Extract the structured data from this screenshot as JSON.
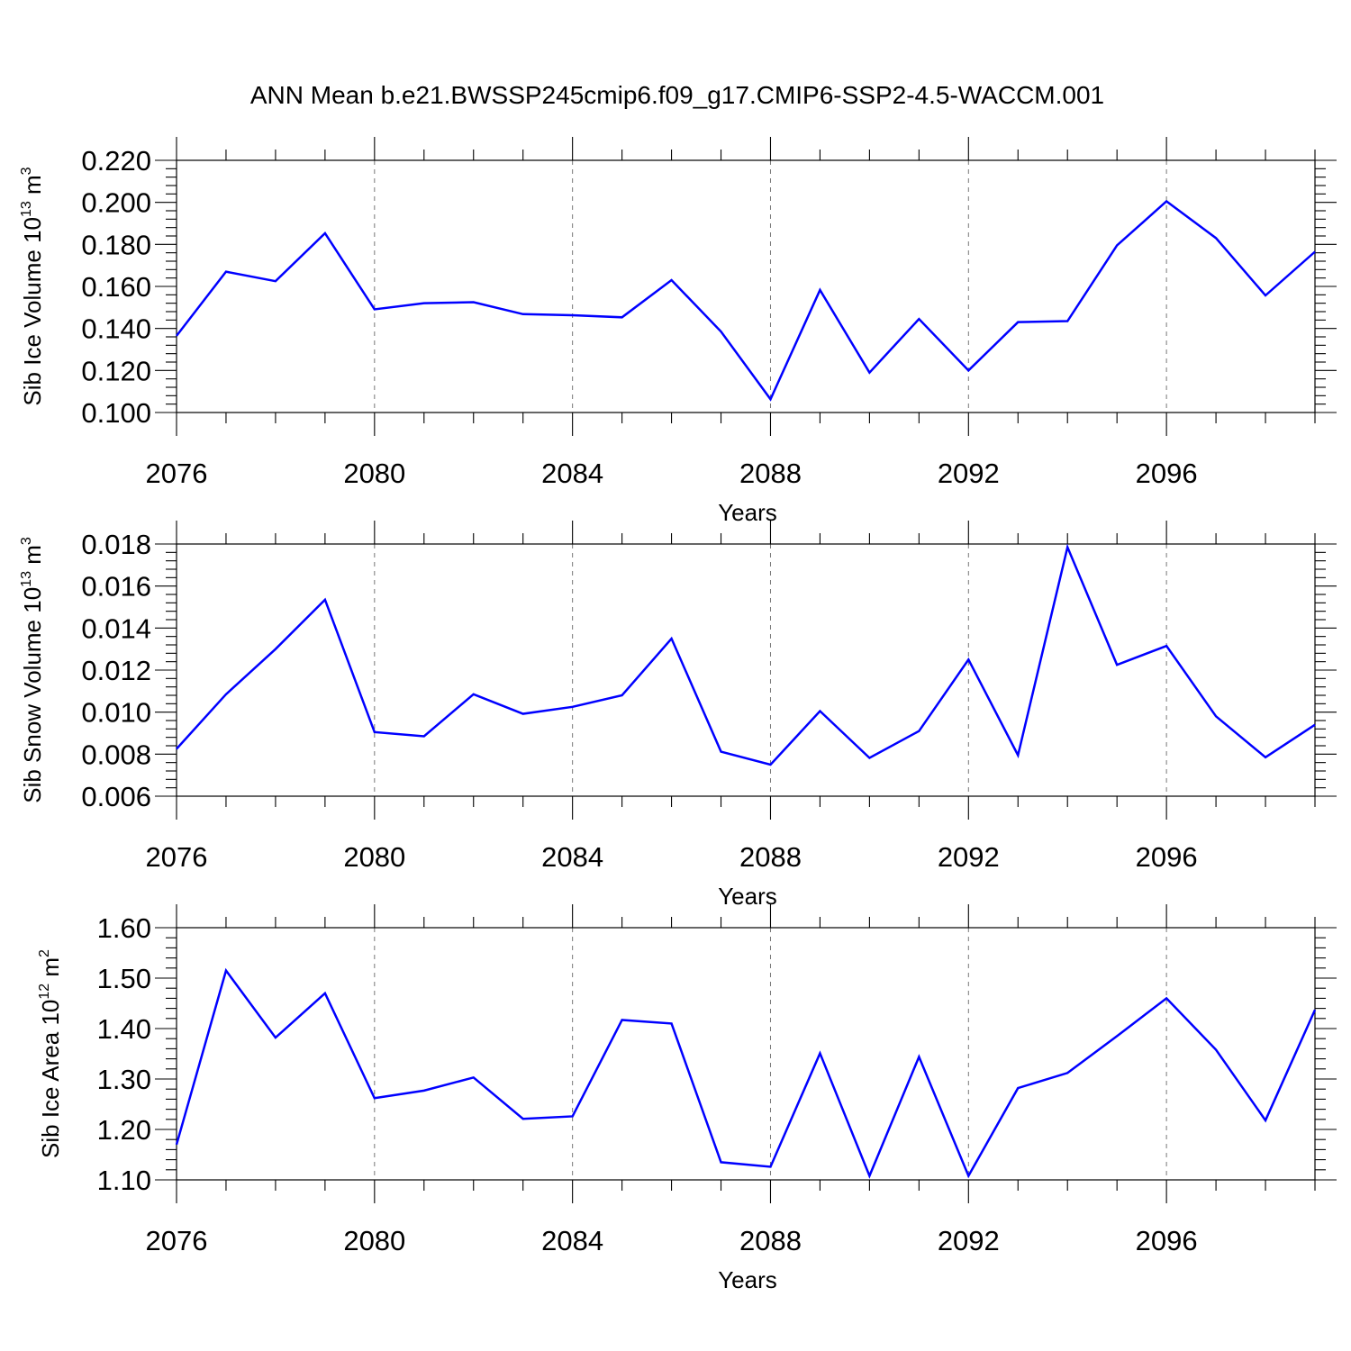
{
  "title": "ANN Mean b.e21.BWSSP245cmip6.f09_g17.CMIP6-SSP2-4.5-WACCM.001",
  "colors": {
    "series": "#0000ff",
    "frame": "#000000",
    "grid": "#777777"
  },
  "chart_data": [
    {
      "type": "line",
      "ylabel": {
        "main": "Sib Ice Volume 10",
        "exp1": "13",
        "mid": " m",
        "exp2": "3"
      },
      "xlabel": "Years",
      "xlim": [
        2076,
        2099
      ],
      "ylim": [
        0.1,
        0.22
      ],
      "x_ticks": [
        2076,
        2080,
        2084,
        2088,
        2092,
        2096
      ],
      "y_ticks": [
        0.1,
        0.12,
        0.14,
        0.16,
        0.18,
        0.2,
        0.22
      ],
      "y_tick_labels": [
        "0.100",
        "0.120",
        "0.140",
        "0.160",
        "0.180",
        "0.200",
        "0.220"
      ],
      "grid": "vertical dashed at major x ticks",
      "x": [
        2076,
        2077,
        2078,
        2079,
        2080,
        2081,
        2082,
        2083,
        2084,
        2085,
        2086,
        2087,
        2088,
        2089,
        2090,
        2091,
        2092,
        2093,
        2094,
        2095,
        2096,
        2097,
        2098,
        2099
      ],
      "values": [
        0.1365,
        0.167,
        0.1625,
        0.1853,
        0.1491,
        0.152,
        0.1525,
        0.1468,
        0.1463,
        0.1453,
        0.163,
        0.1385,
        0.1063,
        0.1583,
        0.119,
        0.1445,
        0.12,
        0.143,
        0.1435,
        0.1795,
        0.2005,
        0.183,
        0.1557,
        0.1765
      ]
    },
    {
      "type": "line",
      "ylabel": {
        "main": "Sib Snow Volume 10",
        "exp1": "13",
        "mid": " m",
        "exp2": "3"
      },
      "xlabel": "Years",
      "xlim": [
        2076,
        2099
      ],
      "ylim": [
        0.006,
        0.018
      ],
      "x_ticks": [
        2076,
        2080,
        2084,
        2088,
        2092,
        2096
      ],
      "y_ticks": [
        0.006,
        0.008,
        0.01,
        0.012,
        0.014,
        0.016,
        0.018
      ],
      "y_tick_labels": [
        "0.006",
        "0.008",
        "0.010",
        "0.012",
        "0.014",
        "0.016",
        "0.018"
      ],
      "grid": "vertical dashed at major x ticks",
      "x": [
        2076,
        2077,
        2078,
        2079,
        2080,
        2081,
        2082,
        2083,
        2084,
        2085,
        2086,
        2087,
        2088,
        2089,
        2090,
        2091,
        2092,
        2093,
        2094,
        2095,
        2096,
        2097,
        2098,
        2099
      ],
      "values": [
        0.00825,
        0.01085,
        0.013,
        0.01535,
        0.00905,
        0.00885,
        0.01085,
        0.00992,
        0.01025,
        0.0108,
        0.0135,
        0.00812,
        0.0075,
        0.01005,
        0.00782,
        0.0091,
        0.0125,
        0.00795,
        0.01785,
        0.01225,
        0.01315,
        0.0098,
        0.00785,
        0.0094
      ]
    },
    {
      "type": "line",
      "ylabel": {
        "main": "Sib Ice Area 10",
        "exp1": "12",
        "mid": " m",
        "exp2": "2"
      },
      "xlabel": "Years",
      "xlim": [
        2076,
        2099
      ],
      "ylim": [
        1.1,
        1.6
      ],
      "x_ticks": [
        2076,
        2080,
        2084,
        2088,
        2092,
        2096
      ],
      "y_ticks": [
        1.1,
        1.2,
        1.3,
        1.4,
        1.5,
        1.6
      ],
      "y_tick_labels": [
        "1.10",
        "1.20",
        "1.30",
        "1.40",
        "1.50",
        "1.60"
      ],
      "grid": "vertical dashed at major x ticks",
      "x": [
        2076,
        2077,
        2078,
        2079,
        2080,
        2081,
        2082,
        2083,
        2084,
        2085,
        2086,
        2087,
        2088,
        2089,
        2090,
        2091,
        2092,
        2093,
        2094,
        2095,
        2096,
        2097,
        2098,
        2099
      ],
      "values": [
        1.17,
        1.515,
        1.382,
        1.47,
        1.262,
        1.277,
        1.303,
        1.221,
        1.226,
        1.417,
        1.41,
        1.135,
        1.126,
        1.351,
        1.108,
        1.344,
        1.108,
        1.282,
        1.312,
        1.385,
        1.46,
        1.358,
        1.218,
        1.437
      ]
    }
  ]
}
